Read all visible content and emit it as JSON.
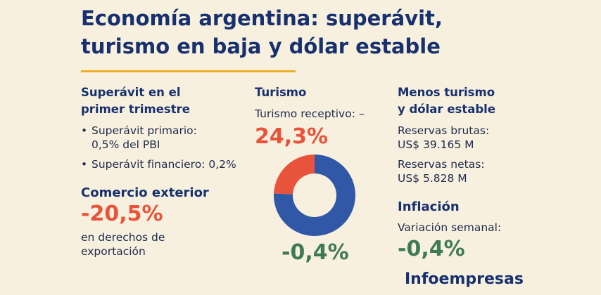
{
  "header": {
    "title": [
      "Economía argentina: superávit,",
      "turismo en baja y dólar estable"
    ]
  },
  "left": {
    "heading": [
      "Superávit en el",
      "primer trimestre"
    ],
    "bullets": [
      [
        "Superávit primario:",
        "0,5% del PBI"
      ],
      [
        "Superávit financiero: 0,2%"
      ]
    ],
    "trade_heading": "Comercio exterior",
    "trade_value": "-20,5%",
    "trade_text": [
      "en derechos de",
      "exportación"
    ]
  },
  "middle": {
    "heading": "Turismo",
    "label": "Turismo receptivo: –",
    "value": "24,3%",
    "donut": {
      "values": [
        24.3,
        75.7
      ],
      "colors": [
        "#e8533b",
        "#3058a6"
      ]
    },
    "bottom_value": "-0,4%"
  },
  "right": {
    "heading": [
      "Menos turismo",
      "y dólar estable"
    ],
    "items": [
      [
        "Reservas brutas:",
        "US$ 39.165 M"
      ],
      [
        "Reservas netas:",
        "US$ 5.828 M"
      ]
    ],
    "inflation_heading": "Inflación",
    "inflation_label": "Variación semanal:",
    "inflation_value": "-0,4%"
  },
  "footer": {
    "brand": "Infoempresas"
  }
}
